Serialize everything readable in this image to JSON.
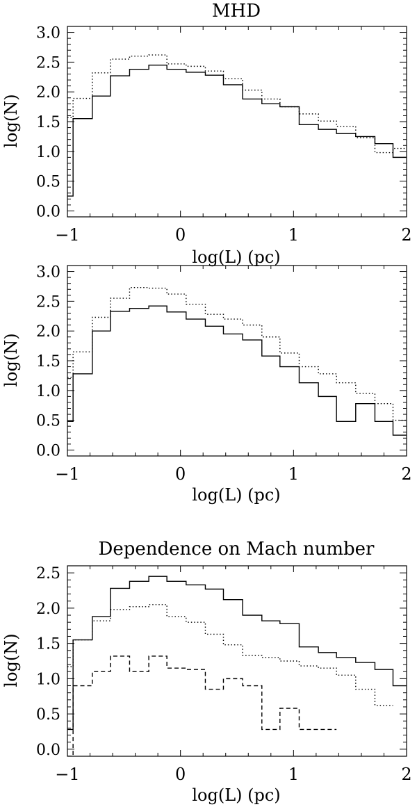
{
  "chart_data": [
    {
      "type": "line",
      "step": true,
      "title": "MHD",
      "xlabel": "log(L) (pc)",
      "ylabel": "log(N)",
      "xlim": [
        -1,
        2
      ],
      "ylim": [
        -0.1,
        3.1
      ],
      "xticks": [
        -1,
        0,
        1,
        2
      ],
      "xtick_labels": [
        "−1",
        "0",
        "1",
        "2"
      ],
      "yticks": [
        0.0,
        0.5,
        1.0,
        1.5,
        2.0,
        2.5,
        3.0
      ],
      "ytick_labels": [
        "0.0",
        "0.5",
        "1.0",
        "1.5",
        "2.0",
        "2.5",
        "3.0"
      ],
      "bin_edges": [
        -1.0,
        -0.95,
        -0.78,
        -0.62,
        -0.45,
        -0.28,
        -0.12,
        0.05,
        0.22,
        0.38,
        0.55,
        0.72,
        0.88,
        1.05,
        1.22,
        1.38,
        1.55,
        1.72,
        1.88,
        2.0
      ],
      "series": [
        {
          "style": "solid",
          "values": [
            0.25,
            1.55,
            1.93,
            2.27,
            2.38,
            2.45,
            2.38,
            2.33,
            2.28,
            2.12,
            1.88,
            1.8,
            1.75,
            1.45,
            1.37,
            1.3,
            1.25,
            1.13,
            0.9,
            1.15,
            -0.1,
            0.6
          ]
        },
        {
          "style": "dotted",
          "values": [
            1.57,
            1.89,
            2.32,
            2.55,
            2.6,
            2.62,
            2.47,
            2.43,
            2.35,
            2.22,
            2.03,
            1.88,
            1.75,
            1.63,
            1.51,
            1.42,
            1.23,
            0.98,
            1.05,
            0.62,
            0.25,
            0.85
          ]
        }
      ]
    },
    {
      "type": "line",
      "step": true,
      "title": "",
      "xlabel": "log(L) (pc)",
      "ylabel": "log(N)",
      "xlim": [
        -1,
        2
      ],
      "ylim": [
        -0.1,
        3.1
      ],
      "xticks": [
        -1,
        0,
        1,
        2
      ],
      "xtick_labels": [
        "−1",
        "0",
        "1",
        "2"
      ],
      "yticks": [
        0.0,
        0.5,
        1.0,
        1.5,
        2.0,
        2.5,
        3.0
      ],
      "ytick_labels": [
        "0.0",
        "0.5",
        "1.0",
        "1.5",
        "2.0",
        "2.5",
        "3.0"
      ],
      "bin_edges": [
        -1.0,
        -0.95,
        -0.78,
        -0.62,
        -0.45,
        -0.28,
        -0.12,
        0.05,
        0.22,
        0.38,
        0.55,
        0.72,
        0.88,
        1.05,
        1.22,
        1.38,
        1.55,
        1.72,
        1.88,
        2.0
      ],
      "series": [
        {
          "style": "solid",
          "values": [
            0.48,
            1.28,
            2.0,
            2.33,
            2.38,
            2.42,
            2.32,
            2.2,
            2.08,
            1.95,
            1.85,
            1.58,
            1.4,
            1.13,
            0.9,
            0.48,
            0.78,
            0.48,
            0.25,
            0.25
          ]
        },
        {
          "style": "dotted",
          "values": [
            1.22,
            1.65,
            2.23,
            2.55,
            2.73,
            2.72,
            2.62,
            2.45,
            2.28,
            2.2,
            2.1,
            1.9,
            1.63,
            1.4,
            1.28,
            1.13,
            0.95,
            0.78,
            0.5,
            0.25
          ]
        }
      ]
    },
    {
      "type": "line",
      "step": true,
      "title": "Dependence on Mach number",
      "xlabel": "log(L) (pc)",
      "ylabel": "log(N)",
      "xlim": [
        -1,
        2
      ],
      "ylim": [
        -0.1,
        2.6
      ],
      "xticks": [
        -1,
        0,
        1,
        2
      ],
      "xtick_labels": [
        "−1",
        "0",
        "1",
        "2"
      ],
      "yticks": [
        0.0,
        0.5,
        1.0,
        1.5,
        2.0,
        2.5
      ],
      "ytick_labels": [
        "0.0",
        "0.5",
        "1.0",
        "1.5",
        "2.0",
        "2.5"
      ],
      "bin_edges": [
        -1.0,
        -0.95,
        -0.78,
        -0.62,
        -0.45,
        -0.28,
        -0.12,
        0.05,
        0.22,
        0.38,
        0.55,
        0.72,
        0.88,
        1.05,
        1.22,
        1.38,
        1.55,
        1.72,
        1.88,
        2.0
      ],
      "series": [
        {
          "style": "solid",
          "values": [
            0.28,
            1.55,
            1.88,
            2.28,
            2.38,
            2.45,
            2.38,
            2.33,
            2.27,
            2.12,
            1.9,
            1.82,
            1.78,
            1.45,
            1.37,
            1.3,
            1.23,
            1.13,
            0.9,
            1.15,
            -0.1,
            0.6
          ]
        },
        {
          "style": "dotted",
          "values": [
            1.17,
            1.55,
            1.82,
            1.98,
            2.02,
            2.05,
            1.88,
            1.8,
            1.63,
            1.48,
            1.33,
            1.3,
            1.25,
            1.18,
            1.15,
            1.05,
            0.85,
            0.62
          ]
        },
        {
          "style": "dashed",
          "values": [
            -0.1,
            0.9,
            1.1,
            1.32,
            1.1,
            1.32,
            1.15,
            1.13,
            0.85,
            1.0,
            0.9,
            0.28,
            0.58,
            0.28,
            0.28
          ]
        }
      ]
    }
  ]
}
